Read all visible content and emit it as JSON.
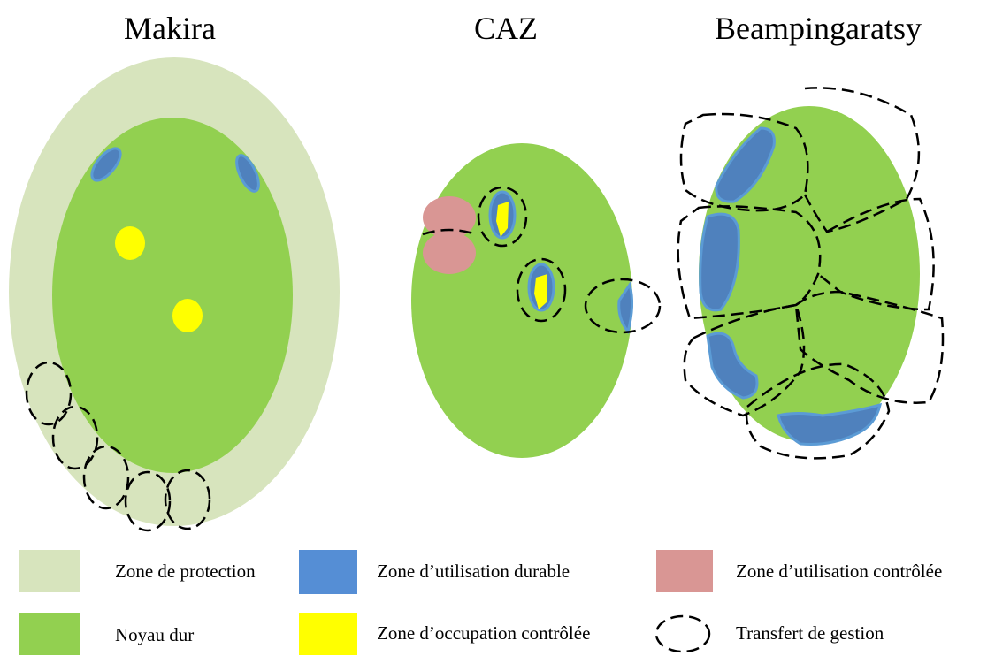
{
  "titles": [
    "Makira",
    "CAZ",
    "Beampingaratsy"
  ],
  "legend": [
    "Zone de protection",
    "Noyau dur",
    "Zone d’utilisation durable",
    "Zone d’occupation contrôlée",
    "Zone d’utilisation contrôlée",
    "Transfert de gestion"
  ]
}
